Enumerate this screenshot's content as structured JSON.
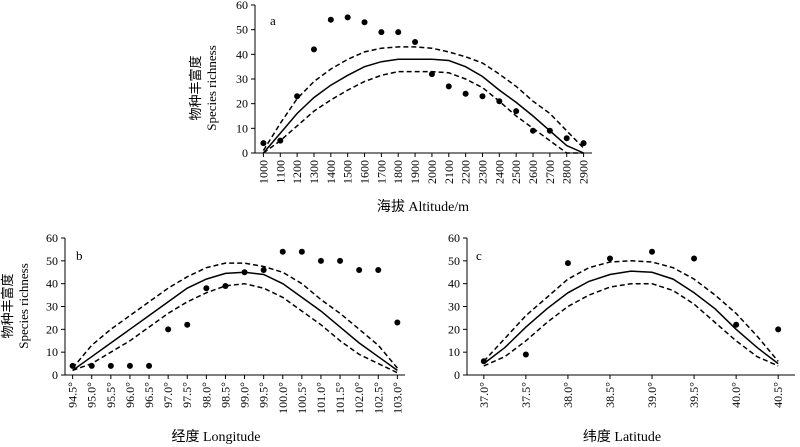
{
  "chart_data": [
    {
      "type": "scatter",
      "panel_label": "a",
      "xlabel": "海拔 Altitude/m",
      "ylabel_cn": "物种丰富度",
      "ylabel_en": "Species richness",
      "x_ticks": [
        "1000",
        "1100",
        "1200",
        "1300",
        "1400",
        "1500",
        "1600",
        "1700",
        "1800",
        "1900",
        "2000",
        "2100",
        "2200",
        "2300",
        "2400",
        "2500",
        "2600",
        "2700",
        "2800",
        "2900"
      ],
      "y_ticks": [
        "0",
        "10",
        "20",
        "30",
        "40",
        "50",
        "60"
      ],
      "xlim": [
        950,
        2950
      ],
      "ylim": [
        0,
        60
      ],
      "points": [
        {
          "x": 1000,
          "y": 4
        },
        {
          "x": 1100,
          "y": 5
        },
        {
          "x": 1200,
          "y": 23
        },
        {
          "x": 1300,
          "y": 42
        },
        {
          "x": 1400,
          "y": 54
        },
        {
          "x": 1500,
          "y": 55
        },
        {
          "x": 1600,
          "y": 53
        },
        {
          "x": 1700,
          "y": 49
        },
        {
          "x": 1800,
          "y": 49
        },
        {
          "x": 1900,
          "y": 45
        },
        {
          "x": 2000,
          "y": 32
        },
        {
          "x": 2100,
          "y": 27
        },
        {
          "x": 2200,
          "y": 24
        },
        {
          "x": 2300,
          "y": 23
        },
        {
          "x": 2400,
          "y": 21
        },
        {
          "x": 2500,
          "y": 17
        },
        {
          "x": 2600,
          "y": 9
        },
        {
          "x": 2700,
          "y": 9
        },
        {
          "x": 2800,
          "y": 6
        },
        {
          "x": 2900,
          "y": 4
        }
      ],
      "fit": {
        "x": [
          1000,
          1100,
          1200,
          1300,
          1400,
          1500,
          1600,
          1700,
          1800,
          1900,
          2000,
          2100,
          2200,
          2300,
          2400,
          2500,
          2600,
          2700,
          2800,
          2900
        ],
        "mean": [
          0,
          8,
          16,
          22.5,
          27.5,
          31.5,
          35,
          37,
          38,
          38,
          38,
          37.5,
          35,
          31,
          25.5,
          20.5,
          15,
          9,
          3,
          0
        ],
        "upper": [
          1,
          12,
          22,
          29,
          34,
          38,
          41,
          42.5,
          43,
          43,
          42.5,
          41,
          39,
          36.5,
          32,
          27,
          21,
          16,
          9,
          2
        ],
        "lower": [
          0,
          5,
          11,
          17,
          21.5,
          25.5,
          29,
          31.5,
          33,
          33,
          33,
          32.5,
          30,
          26.5,
          21,
          15,
          10,
          5,
          0,
          0
        ]
      }
    },
    {
      "type": "scatter",
      "panel_label": "b",
      "xlabel": "经度 Longitude",
      "ylabel_cn": "物种丰富度",
      "ylabel_en": "Species richness",
      "x_ticks": [
        "94.5°",
        "95.0°",
        "95.5°",
        "96.0°",
        "96.5°",
        "97.0°",
        "97.5°",
        "98.0°",
        "98.5°",
        "99.0°",
        "99.5°",
        "100.0°",
        "100.5°",
        "101.0°",
        "101.5°",
        "102.0°",
        "102.5°",
        "103.0°"
      ],
      "x_tick_values": [
        94.5,
        95.0,
        95.5,
        96.0,
        96.5,
        97.0,
        97.5,
        98.0,
        98.5,
        99.0,
        99.5,
        100.0,
        100.5,
        101.0,
        101.5,
        102.0,
        102.5,
        103.0
      ],
      "y_ticks": [
        "0",
        "10",
        "20",
        "30",
        "40",
        "50",
        "60"
      ],
      "xlim": [
        94.3,
        103.2
      ],
      "ylim": [
        0,
        60
      ],
      "points": [
        {
          "x": 94.5,
          "y": 4
        },
        {
          "x": 95.0,
          "y": 4
        },
        {
          "x": 95.5,
          "y": 4
        },
        {
          "x": 96.0,
          "y": 4
        },
        {
          "x": 96.5,
          "y": 4
        },
        {
          "x": 97.0,
          "y": 20
        },
        {
          "x": 97.5,
          "y": 22
        },
        {
          "x": 98.0,
          "y": 38
        },
        {
          "x": 98.5,
          "y": 39
        },
        {
          "x": 99.0,
          "y": 45
        },
        {
          "x": 99.5,
          "y": 46
        },
        {
          "x": 100.0,
          "y": 54
        },
        {
          "x": 100.5,
          "y": 54
        },
        {
          "x": 101.0,
          "y": 50
        },
        {
          "x": 101.5,
          "y": 50
        },
        {
          "x": 102.0,
          "y": 46
        },
        {
          "x": 102.5,
          "y": 46
        },
        {
          "x": 103.0,
          "y": 23
        }
      ],
      "fit": {
        "x": [
          94.5,
          95.0,
          95.5,
          96.0,
          96.5,
          97.0,
          97.5,
          98.0,
          98.5,
          99.0,
          99.5,
          100.0,
          100.5,
          101.0,
          101.5,
          102.0,
          102.5,
          103.0
        ],
        "mean": [
          2,
          8,
          14,
          20,
          26,
          32,
          38,
          42,
          44.5,
          45,
          44,
          40,
          34,
          28,
          21,
          14,
          8,
          2
        ],
        "upper": [
          3,
          13,
          20,
          26,
          32,
          38,
          43,
          47,
          49,
          49,
          47.5,
          45,
          40,
          33,
          27,
          20,
          13,
          3
        ],
        "lower": [
          2,
          5,
          10,
          15,
          21,
          27,
          32,
          36,
          39,
          40,
          38,
          34,
          28,
          22,
          15,
          9,
          5,
          1
        ]
      }
    },
    {
      "type": "scatter",
      "panel_label": "c",
      "xlabel": "纬度 Latitude",
      "x_ticks": [
        "37.0°",
        "37.5°",
        "38.0°",
        "38.5°",
        "39.0°",
        "39.5°",
        "40.0°",
        "40.5°"
      ],
      "x_tick_values": [
        37.0,
        37.5,
        38.0,
        38.5,
        39.0,
        39.5,
        40.0,
        40.5
      ],
      "y_ticks": [
        "0",
        "10",
        "20",
        "30",
        "40",
        "50",
        "60"
      ],
      "xlim": [
        36.8,
        40.7
      ],
      "ylim": [
        0,
        60
      ],
      "points": [
        {
          "x": 37.0,
          "y": 6
        },
        {
          "x": 37.5,
          "y": 9
        },
        {
          "x": 38.0,
          "y": 49
        },
        {
          "x": 38.5,
          "y": 51
        },
        {
          "x": 39.0,
          "y": 54
        },
        {
          "x": 39.5,
          "y": 51
        },
        {
          "x": 40.0,
          "y": 22
        },
        {
          "x": 40.5,
          "y": 20
        }
      ],
      "fit": {
        "x": [
          37.0,
          37.25,
          37.5,
          37.75,
          38.0,
          38.25,
          38.5,
          38.75,
          39.0,
          39.25,
          39.5,
          39.75,
          40.0,
          40.25,
          40.5
        ],
        "mean": [
          5,
          12,
          21,
          29,
          36,
          41,
          44,
          45.5,
          45,
          42,
          36,
          29,
          20,
          12,
          5
        ],
        "upper": [
          6,
          16,
          26,
          34,
          42,
          47,
          49.5,
          50,
          49.5,
          47,
          42,
          35,
          27,
          17,
          6
        ],
        "lower": [
          4,
          8,
          15,
          23,
          30,
          35,
          38.5,
          40,
          40,
          37,
          31,
          23,
          15,
          8,
          4
        ]
      }
    }
  ]
}
